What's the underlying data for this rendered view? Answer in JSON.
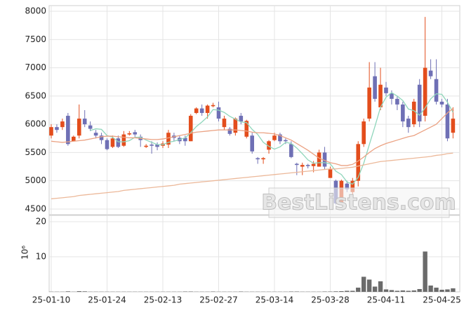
{
  "chart_data": {
    "type": "candlestick",
    "categories": [
      "25-01-10",
      null,
      null,
      null,
      null,
      null,
      null,
      null,
      null,
      null,
      "25-01-24",
      null,
      null,
      null,
      null,
      null,
      null,
      null,
      null,
      null,
      "25-02-13",
      null,
      null,
      null,
      null,
      null,
      null,
      null,
      null,
      null,
      "25-02-27",
      null,
      null,
      null,
      null,
      null,
      null,
      null,
      null,
      null,
      "25-03-14",
      null,
      null,
      null,
      null,
      null,
      null,
      null,
      null,
      null,
      "25-03-28",
      null,
      null,
      null,
      null,
      null,
      null,
      null,
      null,
      null,
      "25-04-11",
      null,
      null,
      null,
      null,
      null,
      null,
      null,
      null,
      null,
      "25-04-25",
      null,
      null
    ],
    "open": [
      5800,
      5950,
      5950,
      6150,
      5700,
      5800,
      6100,
      5980,
      5850,
      5800,
      5720,
      5600,
      5750,
      5620,
      5820,
      5860,
      5780,
      5600,
      5640,
      5640,
      5620,
      5640,
      5800,
      5760,
      5760,
      5700,
      6200,
      6280,
      6200,
      6320,
      6300,
      5950,
      5920,
      5850,
      6150,
      5780,
      5800,
      5400,
      5380,
      5550,
      5720,
      5820,
      5720,
      5650,
      5300,
      5250,
      5280,
      5260,
      5250,
      5500,
      5050,
      5000,
      4600,
      4950,
      4800,
      5000,
      5650,
      6100,
      6850,
      6300,
      6650,
      6550,
      6450,
      6350,
      6100,
      6000,
      6700,
      6150,
      6950,
      6800,
      6400,
      6350,
      5850
    ],
    "close": [
      5950,
      5900,
      6050,
      5650,
      5780,
      6100,
      6000,
      5920,
      5800,
      5720,
      5560,
      5750,
      5600,
      5820,
      5840,
      5820,
      5720,
      5620,
      5620,
      5600,
      5660,
      5850,
      5760,
      5700,
      5700,
      6150,
      6280,
      6200,
      6330,
      6340,
      6100,
      6100,
      5830,
      6100,
      6050,
      6060,
      5520,
      5380,
      5400,
      5700,
      5800,
      5700,
      5700,
      5420,
      5280,
      5280,
      5260,
      5300,
      5500,
      5250,
      5200,
      4600,
      5000,
      4850,
      5000,
      5650,
      6050,
      6650,
      6450,
      6700,
      6550,
      6450,
      6350,
      6050,
      5950,
      6400,
      6050,
      7000,
      6850,
      6400,
      6350,
      5750,
      6100
    ],
    "high": [
      6000,
      6000,
      6100,
      6200,
      5800,
      6350,
      6250,
      6050,
      5900,
      5850,
      5750,
      5800,
      5800,
      5880,
      5880,
      5900,
      5820,
      5650,
      5700,
      5680,
      5700,
      5900,
      5850,
      5800,
      5800,
      6180,
      6300,
      6350,
      6350,
      6380,
      6400,
      6150,
      5950,
      6120,
      6200,
      6080,
      5850,
      5420,
      5420,
      5720,
      5850,
      5850,
      5750,
      5700,
      5320,
      5320,
      5300,
      5350,
      5550,
      5600,
      5250,
      5020,
      5020,
      5000,
      5050,
      5700,
      6100,
      7100,
      7100,
      7000,
      6750,
      6600,
      6500,
      6400,
      6150,
      6450,
      6800,
      7900,
      7150,
      7150,
      6450,
      6450,
      6300
    ],
    "low": [
      5750,
      5850,
      5900,
      5620,
      5700,
      5750,
      5950,
      5880,
      5750,
      5650,
      5540,
      5580,
      5580,
      5600,
      5800,
      5780,
      5600,
      5580,
      5480,
      5540,
      5580,
      5580,
      5700,
      5650,
      5620,
      5700,
      6180,
      6150,
      6100,
      6300,
      6050,
      5900,
      5800,
      5800,
      6000,
      5750,
      5480,
      5300,
      5300,
      5480,
      5700,
      5650,
      5650,
      5400,
      5100,
      5100,
      5220,
      5150,
      5250,
      5200,
      5050,
      4580,
      4580,
      4800,
      4750,
      4900,
      5600,
      6050,
      6400,
      6250,
      6500,
      6350,
      6250,
      5950,
      5850,
      5950,
      5950,
      6050,
      6800,
      6350,
      6300,
      5700,
      5750
    ],
    "up_color": "#e34d1c",
    "down_color": "#6f70b5",
    "ylim": [
      4400,
      8100
    ],
    "yticks": [
      4500,
      5000,
      5500,
      6000,
      6500,
      7000,
      7500,
      8000
    ],
    "grid": true,
    "lines": [
      {
        "color": "#8fd6bb",
        "values": [
          null,
          null,
          null,
          null,
          null,
          null,
          null,
          5890,
          5920,
          5910,
          5800,
          5770,
          5690,
          5690,
          5710,
          5770,
          5770,
          5720,
          5680,
          5640,
          5640,
          5680,
          5700,
          5730,
          5760,
          5850,
          5960,
          6040,
          6130,
          6260,
          6250,
          6210,
          6140,
          6090,
          6040,
          6030,
          5910,
          5820,
          5680,
          5610,
          5560,
          5600,
          5680,
          5660,
          5580,
          5480,
          5370,
          5310,
          5320,
          5320,
          5300,
          5170,
          5110,
          4980,
          4940,
          5060,
          5310,
          5640,
          5960,
          6300,
          6480,
          6560,
          6500,
          6420,
          6270,
          6240,
          6160,
          6290,
          6450,
          6540,
          6530,
          6390,
          6210
        ]
      },
      {
        "color": "#eba283",
        "values": [
          5700,
          5690,
          5680,
          5690,
          5700,
          5710,
          5720,
          5740,
          5760,
          5780,
          5790,
          5790,
          5780,
          5770,
          5760,
          5760,
          5750,
          5740,
          5730,
          5730,
          5740,
          5760,
          5780,
          5800,
          5820,
          5840,
          5860,
          5870,
          5880,
          5890,
          5900,
          5900,
          5900,
          5900,
          5890,
          5880,
          5860,
          5850,
          5850,
          5840,
          5830,
          5800,
          5760,
          5720,
          5660,
          5600,
          5540,
          5470,
          5400,
          5360,
          5320,
          5300,
          5270,
          5270,
          5290,
          5350,
          5420,
          5500,
          5570,
          5620,
          5660,
          5690,
          5720,
          5750,
          5780,
          5800,
          5850,
          5900,
          5950,
          6000,
          6100,
          6200,
          6280
        ]
      },
      {
        "color": "#ecb899",
        "values": [
          4680,
          4690,
          4700,
          4710,
          4720,
          4740,
          4750,
          4760,
          4770,
          4780,
          4790,
          4800,
          4810,
          4830,
          4840,
          4850,
          4860,
          4870,
          4880,
          4890,
          4900,
          4910,
          4920,
          4940,
          4950,
          4960,
          4970,
          4980,
          4990,
          5000,
          5010,
          5020,
          5030,
          5040,
          5050,
          5060,
          5070,
          5080,
          5090,
          5100,
          5110,
          5120,
          5130,
          5140,
          5150,
          5160,
          5170,
          5180,
          5190,
          5200,
          5210,
          5210,
          5220,
          5230,
          5240,
          5260,
          5280,
          5300,
          5320,
          5340,
          5350,
          5360,
          5370,
          5380,
          5390,
          5400,
          5410,
          5420,
          5430,
          5450,
          5460,
          5480,
          5490
        ]
      }
    ],
    "volume": {
      "type": "bar",
      "color": "#6b6b6b",
      "axis_label": "10⁶",
      "ylim": [
        0,
        20
      ],
      "yticks": [
        10,
        20
      ],
      "values": [
        0.05,
        0.05,
        0.05,
        0.15,
        0.05,
        0.2,
        0.15,
        0.05,
        0.05,
        0.05,
        0.05,
        0.05,
        0.05,
        0.05,
        0.05,
        0.05,
        0.05,
        0.05,
        0.05,
        0.05,
        0.05,
        0.05,
        0.05,
        0.05,
        0.1,
        0.1,
        0.05,
        0.05,
        0.05,
        0.1,
        0.05,
        0.05,
        0.05,
        0.05,
        0.1,
        0.05,
        0.05,
        0.05,
        0.05,
        0.05,
        0.05,
        0.05,
        0.05,
        0.1,
        0.1,
        0.05,
        0.05,
        0.05,
        0.05,
        0.1,
        0.1,
        0.15,
        0.2,
        0.3,
        0.3,
        1.2,
        4.3,
        3.5,
        1.5,
        3.0,
        0.7,
        0.5,
        0.3,
        0.4,
        0.3,
        0.4,
        0.8,
        11.5,
        1.8,
        1.2,
        0.6,
        0.7,
        1.0
      ]
    },
    "watermark": "BestListens.com"
  }
}
